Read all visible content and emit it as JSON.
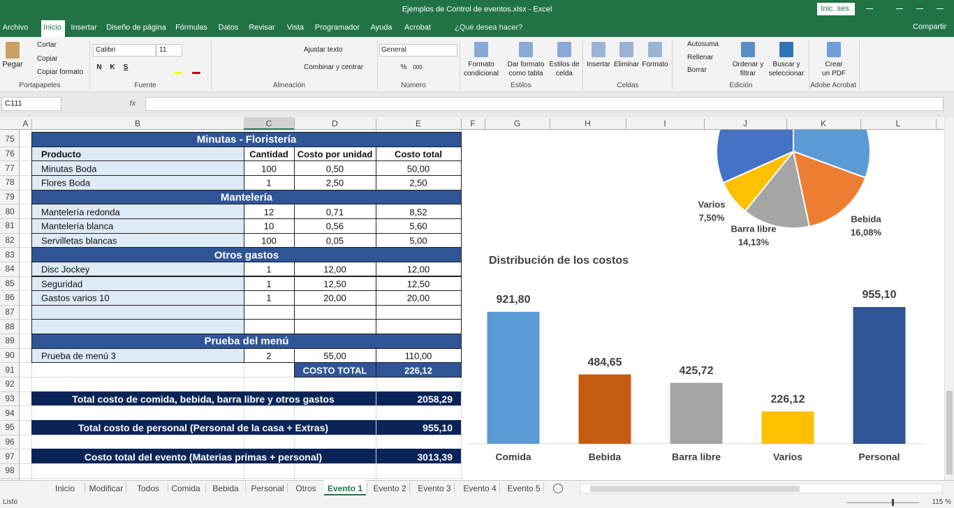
{
  "window": {
    "title": "Ejemplos de Control de eventos.xlsx  -  Excel",
    "signin": "Inic. ses."
  },
  "menu": {
    "tabs": [
      "Archivo",
      "Inicio",
      "Insertar",
      "Diseño de página",
      "Fórmulas",
      "Datos",
      "Revisar",
      "Vista",
      "Programador",
      "Ayuda",
      "Acrobat"
    ],
    "search": "¿Qué desea hacer?",
    "share": "Compartir"
  },
  "ribbon": {
    "clipboard": {
      "group": "Portapapeles",
      "paste": "Pegar",
      "cut": "Cortar",
      "copy": "Copiar",
      "format_painter": "Copiar formato"
    },
    "font": {
      "group": "Fuente",
      "name": "Calibri",
      "size": "11",
      "bold": "N",
      "italic": "K",
      "underline": "S"
    },
    "alignment": {
      "group": "Alineación",
      "wrap": "Ajustar texto",
      "merge": "Combinar y centrar"
    },
    "number": {
      "group": "Número",
      "format": "General",
      "percent": "%",
      "thousands": "000"
    },
    "styles": {
      "group": "Estilos",
      "conditional": [
        "Formato",
        "condicional"
      ],
      "table": [
        "Dar formato",
        "como tabla"
      ],
      "cell": [
        "Estilos de",
        "celda"
      ]
    },
    "cells": {
      "group": "Celdas",
      "insert": "Insertar",
      "delete": "Eliminar",
      "format": "Formato"
    },
    "editing": {
      "group": "Edición",
      "autosum": "Autosuma",
      "fill": "Rellenar",
      "clear": "Borrar",
      "sort": [
        "Ordenar y",
        "filtrar"
      ],
      "find": [
        "Buscar y",
        "seleccionar"
      ]
    },
    "acrobat": {
      "group": "Adobe Acrobat",
      "create": [
        "Crear",
        "un PDF"
      ]
    }
  },
  "formula_bar": {
    "name_box": "C111",
    "fx": "fx"
  },
  "sheet": {
    "columns": [
      "A",
      "B",
      "C",
      "D",
      "E",
      "F",
      "G",
      "H",
      "I",
      "J",
      "K",
      "L"
    ],
    "rows": [
      75,
      76,
      77,
      78,
      79,
      80,
      81,
      82,
      83,
      84,
      85,
      86,
      87,
      88,
      89,
      90,
      91,
      92,
      93,
      94,
      95,
      96,
      97,
      98
    ],
    "cells": [
      {
        "section": "Minutas - Floristería"
      },
      {
        "header": [
          "Producto",
          "Cantidad",
          "Costo por unidad",
          "Costo total"
        ]
      },
      {
        "item": [
          "Minutas Boda",
          "100",
          "0,50",
          "50,00"
        ]
      },
      {
        "item": [
          "Flores Boda",
          "1",
          "2,50",
          "2,50"
        ]
      },
      {
        "section": "Mantelería"
      },
      {
        "item": [
          "Mantelería redonda",
          "12",
          "0,71",
          "8,52"
        ]
      },
      {
        "item": [
          "Mantelería blanca",
          "10",
          "0,56",
          "5,60"
        ]
      },
      {
        "item": [
          "Servilletas blancas",
          "100",
          "0,05",
          "5,00"
        ]
      },
      {
        "section": "Otros gastos"
      },
      {
        "item": [
          "Disc Jockey",
          "1",
          "12,00",
          "12,00"
        ]
      },
      {
        "item": [
          "Seguridad",
          "1",
          "12,50",
          "12,50"
        ]
      },
      {
        "item": [
          "Gastos varios 10",
          "1",
          "20,00",
          "20,00"
        ]
      },
      {
        "item": []
      },
      {
        "item": []
      },
      {
        "section": "Prueba del menú"
      },
      {
        "item": [
          "Prueba de menú 3",
          "2",
          "55,00",
          "110,00"
        ]
      },
      {
        "total": [
          "COSTO TOTAL",
          "226,12"
        ]
      },
      null,
      {
        "summary": [
          "Total costo de comida, bebida, barra libre y otros gastos",
          "2058,29"
        ]
      },
      null,
      {
        "summary": [
          "Total costo de personal (Personal de la casa + Extras)",
          "955,10"
        ]
      },
      null,
      {
        "summary": [
          "Costo total del evento (Materias primas + personal)",
          "3013,39"
        ]
      },
      null
    ]
  },
  "bar_chart": {
    "type": "bar",
    "title": "Distribución de los costos",
    "categories": [
      "Comida",
      "Bebida",
      "Barra libre",
      "Varios",
      "Personal"
    ],
    "values": [
      921.8,
      484.65,
      425.72,
      226.12,
      955.1
    ],
    "value_labels": [
      "921,80",
      "484,65",
      "425,72",
      "226,12",
      "955,10"
    ],
    "colors": [
      "#5b9bd5",
      "#c55a11",
      "#a5a5a5",
      "#ffc000",
      "#2f5597"
    ]
  },
  "pie_chart": {
    "type": "pie",
    "categories": [
      null,
      "Bebida",
      "Barra libre",
      "Varios",
      null
    ],
    "values": [
      30.59,
      16.08,
      14.13,
      7.5,
      31.7
    ],
    "value_labels": [
      null,
      "16,08%",
      "14,13%",
      "7,50%",
      null
    ],
    "colors": [
      "#5b9bd5",
      "#ed7d31",
      "#a5a5a5",
      "#ffc000",
      "#4472c4"
    ]
  },
  "sheet_tabs": [
    "Inicio",
    "Modificar",
    "Todos",
    "Comida",
    "Bebida",
    "Personal",
    "Otros",
    "Evento 1",
    "Evento 2",
    "Evento 3",
    "Evento 4",
    "Evento 5"
  ],
  "status": {
    "ready": "Listo",
    "zoom": "115 %"
  }
}
